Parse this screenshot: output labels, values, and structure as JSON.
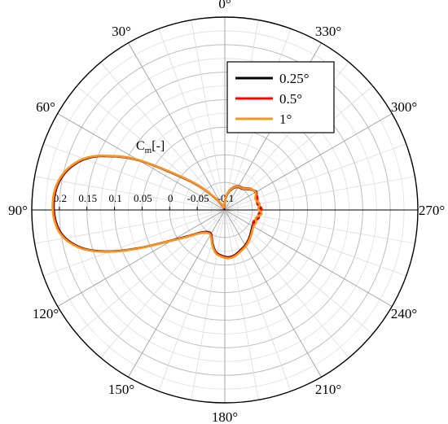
{
  "chart_data": {
    "type": "polar-line",
    "radial_axis": {
      "label": "C",
      "label_sub": "m",
      "label_suffix": "[-]",
      "min": -0.1,
      "max": 0.25,
      "ticks": [
        -0.1,
        -0.05,
        0,
        0.05,
        0.1,
        0.15,
        0.2
      ],
      "tick_labels": [
        "-0.1",
        "-0.05",
        "0",
        "0.05",
        "0.1",
        "0.15",
        "0.2"
      ]
    },
    "angular_axis": {
      "direction": "counterclockwise",
      "zero_location": "top",
      "major_step_deg": 30,
      "minor_step_deg": 10,
      "labels": [
        "0°",
        "30°",
        "60°",
        "90°",
        "120°",
        "150°",
        "180°",
        "210°",
        "240°",
        "270°",
        "300°",
        "330°"
      ]
    },
    "grid": true,
    "legend": {
      "position": "top-right",
      "entries": [
        "0.25°",
        "0.5°",
        "1°"
      ]
    },
    "series": [
      {
        "name": "0.25°",
        "color": "#000000",
        "theta_deg": [
          0,
          8,
          16,
          24,
          30,
          40,
          50,
          60,
          66,
          70,
          74,
          78,
          82,
          86,
          90,
          94,
          98,
          102,
          106,
          110,
          114,
          120,
          126,
          132,
          140,
          150,
          160,
          168,
          176,
          184,
          192,
          200,
          210,
          220,
          230,
          240,
          248,
          256,
          264,
          272,
          280,
          290,
          300,
          310,
          320,
          330,
          338,
          346,
          354,
          360
        ],
        "r": [
          -0.085,
          -0.093,
          -0.095,
          -0.097,
          -0.091,
          -0.07,
          -0.02,
          0.08,
          0.14,
          0.17,
          0.188,
          0.2,
          0.207,
          0.21,
          0.21,
          0.207,
          0.2,
          0.185,
          0.16,
          0.12,
          0.07,
          0.01,
          -0.02,
          -0.038,
          -0.048,
          -0.05,
          -0.035,
          -0.022,
          -0.017,
          -0.014,
          -0.016,
          -0.021,
          -0.026,
          -0.032,
          -0.038,
          -0.042,
          -0.041,
          -0.04,
          -0.035,
          -0.036,
          -0.038,
          -0.04,
          -0.034,
          -0.042,
          -0.05,
          -0.052,
          -0.057,
          -0.065,
          -0.075,
          -0.085
        ]
      },
      {
        "name": "0.5°",
        "color": "#ff0000",
        "theta_deg": [
          0,
          8,
          16,
          24,
          30,
          40,
          50,
          60,
          66,
          70,
          74,
          78,
          82,
          86,
          90,
          94,
          98,
          102,
          106,
          110,
          114,
          120,
          126,
          132,
          140,
          150,
          160,
          168,
          176,
          184,
          192,
          200,
          210,
          220,
          230,
          240,
          248,
          256,
          264,
          272,
          280,
          290,
          300,
          310,
          320,
          330,
          338,
          346,
          354,
          360
        ],
        "r": [
          -0.086,
          -0.092,
          -0.094,
          -0.096,
          -0.09,
          -0.069,
          -0.019,
          0.081,
          0.141,
          0.171,
          0.189,
          0.201,
          0.208,
          0.211,
          0.211,
          0.208,
          0.201,
          0.186,
          0.161,
          0.121,
          0.071,
          0.011,
          -0.019,
          -0.037,
          -0.047,
          -0.049,
          -0.034,
          -0.021,
          -0.016,
          -0.013,
          -0.015,
          -0.02,
          -0.025,
          -0.031,
          -0.037,
          -0.041,
          -0.044,
          -0.037,
          -0.038,
          -0.033,
          -0.04,
          -0.037,
          -0.036,
          -0.04,
          -0.048,
          -0.05,
          -0.055,
          -0.063,
          -0.074,
          -0.086
        ]
      },
      {
        "name": "1°",
        "color": "#f7941d",
        "theta_deg": [
          0,
          8,
          16,
          24,
          30,
          40,
          50,
          60,
          66,
          70,
          74,
          78,
          82,
          86,
          90,
          94,
          98,
          102,
          106,
          110,
          114,
          120,
          126,
          132,
          140,
          150,
          160,
          168,
          176,
          184,
          192,
          200,
          210,
          220,
          230,
          240,
          248,
          256,
          264,
          272,
          280,
          290,
          300,
          310,
          320,
          330,
          338,
          346,
          354,
          360
        ],
        "r": [
          -0.087,
          -0.091,
          -0.093,
          -0.095,
          -0.089,
          -0.068,
          -0.018,
          0.082,
          0.142,
          0.172,
          0.19,
          0.202,
          0.209,
          0.212,
          0.212,
          0.209,
          0.202,
          0.187,
          0.162,
          0.122,
          0.072,
          0.012,
          -0.018,
          -0.036,
          -0.046,
          -0.048,
          -0.033,
          -0.02,
          -0.015,
          -0.012,
          -0.014,
          -0.019,
          -0.024,
          -0.03,
          -0.036,
          -0.04,
          -0.039,
          -0.042,
          -0.033,
          -0.039,
          -0.036,
          -0.041,
          -0.035,
          -0.041,
          -0.049,
          -0.051,
          -0.056,
          -0.064,
          -0.074,
          -0.087
        ]
      }
    ]
  }
}
